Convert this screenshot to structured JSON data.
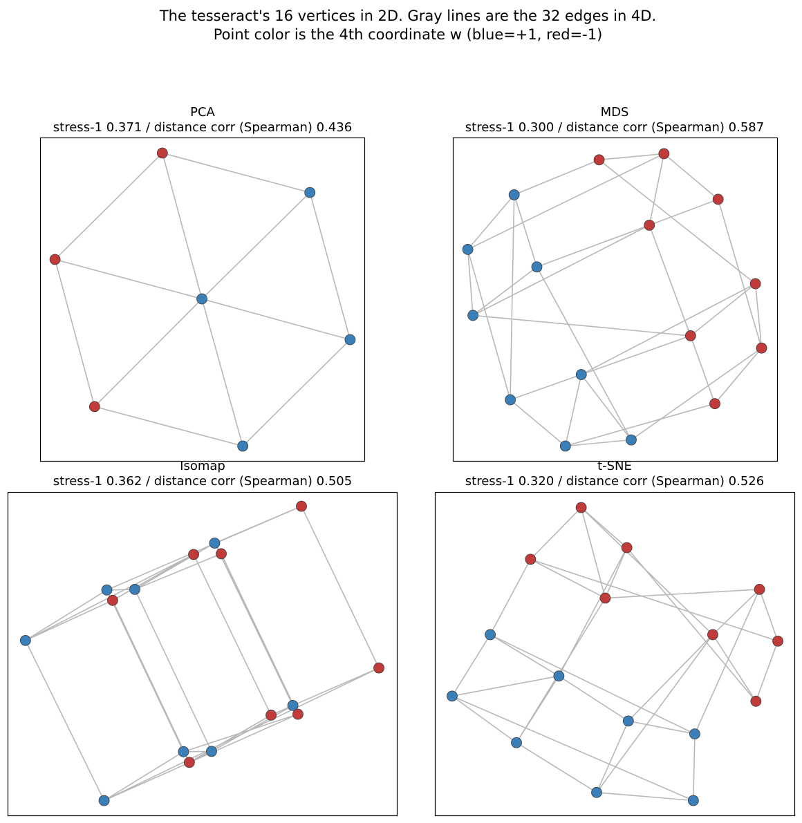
{
  "title_lines": [
    "The tesseract's 16 vertices in 2D. Gray lines are the 32 edges in 4D.",
    "Point color is the 4th coordinate w (blue=+1, red=-1)"
  ],
  "colors": {
    "w_plus": "#3a7fb8",
    "w_minus": "#c23b3b",
    "edge": "#b8b8b8"
  },
  "chart_data": [
    {
      "type": "scatter",
      "title": "PCA",
      "subtitle": "stress-1 0.371 / distance corr (Spearman) 0.436",
      "xlabel": "",
      "ylabel": "",
      "ticks": false,
      "grid": false,
      "xlim": [
        0,
        100
      ],
      "ylim": [
        0,
        100
      ],
      "points": [
        {
          "x": 37.6,
          "y": 95.3,
          "w": -1
        },
        {
          "x": 83.1,
          "y": 83.1,
          "w": 1
        },
        {
          "x": 4.5,
          "y": 62.4,
          "w": -1
        },
        {
          "x": 49.8,
          "y": 50.2,
          "w": 1
        },
        {
          "x": 95.5,
          "y": 37.6,
          "w": 1
        },
        {
          "x": 16.7,
          "y": 16.9,
          "w": -1
        },
        {
          "x": 62.4,
          "y": 4.7,
          "w": 1
        }
      ],
      "edges": [
        [
          0,
          1
        ],
        [
          0,
          2
        ],
        [
          0,
          3
        ],
        [
          1,
          3
        ],
        [
          1,
          4
        ],
        [
          2,
          3
        ],
        [
          2,
          5
        ],
        [
          3,
          4
        ],
        [
          3,
          5
        ],
        [
          3,
          6
        ],
        [
          4,
          6
        ],
        [
          5,
          6
        ]
      ]
    },
    {
      "type": "scatter",
      "title": "MDS",
      "subtitle": "stress-1 0.300 / distance corr (Spearman) 0.587",
      "xlabel": "",
      "ylabel": "",
      "ticks": false,
      "grid": false,
      "xlim": [
        0,
        100
      ],
      "ylim": [
        0,
        100
      ],
      "points": [
        {
          "x": 45.0,
          "y": 93.2,
          "w": -1
        },
        {
          "x": 65.0,
          "y": 95.1,
          "w": -1
        },
        {
          "x": 18.8,
          "y": 82.4,
          "w": 1
        },
        {
          "x": 81.7,
          "y": 81.0,
          "w": -1
        },
        {
          "x": 60.5,
          "y": 73.0,
          "w": -1
        },
        {
          "x": 4.5,
          "y": 65.5,
          "w": 1
        },
        {
          "x": 25.8,
          "y": 60.1,
          "w": 1
        },
        {
          "x": 93.2,
          "y": 54.9,
          "w": -1
        },
        {
          "x": 6.1,
          "y": 45.1,
          "w": 1
        },
        {
          "x": 73.2,
          "y": 38.8,
          "w": -1
        },
        {
          "x": 95.1,
          "y": 35.0,
          "w": -1
        },
        {
          "x": 39.5,
          "y": 26.8,
          "w": 1
        },
        {
          "x": 17.6,
          "y": 19.0,
          "w": 1
        },
        {
          "x": 80.7,
          "y": 17.8,
          "w": -1
        },
        {
          "x": 54.9,
          "y": 6.6,
          "w": 1
        },
        {
          "x": 34.6,
          "y": 4.7,
          "w": 1
        }
      ],
      "edges": [
        [
          0,
          1
        ],
        [
          0,
          2
        ],
        [
          0,
          7
        ],
        [
          1,
          3
        ],
        [
          1,
          5
        ],
        [
          2,
          6
        ],
        [
          2,
          12
        ],
        [
          3,
          4
        ],
        [
          3,
          10
        ],
        [
          4,
          6
        ],
        [
          4,
          9
        ],
        [
          4,
          8
        ],
        [
          5,
          8
        ],
        [
          5,
          12
        ],
        [
          6,
          14
        ],
        [
          7,
          9
        ],
        [
          7,
          10
        ],
        [
          7,
          11
        ],
        [
          8,
          9
        ],
        [
          9,
          13
        ],
        [
          10,
          13
        ],
        [
          10,
          14
        ],
        [
          11,
          12
        ],
        [
          11,
          15
        ],
        [
          12,
          15
        ],
        [
          13,
          15
        ],
        [
          14,
          15
        ],
        [
          5,
          2
        ],
        [
          6,
          8
        ],
        [
          11,
          14
        ],
        [
          1,
          4
        ],
        [
          9,
          11
        ]
      ]
    },
    {
      "type": "scatter",
      "title": "Isomap",
      "subtitle": "stress-1 0.362 / distance corr (Spearman) 0.505",
      "xlabel": "",
      "ylabel": "",
      "ticks": false,
      "grid": false,
      "xlim": [
        0,
        100
      ],
      "ylim": [
        0,
        100
      ],
      "points": [
        {
          "x": 75.4,
          "y": 95.7,
          "w": -1
        },
        {
          "x": 53.1,
          "y": 84.3,
          "w": 1
        },
        {
          "x": 47.7,
          "y": 80.8,
          "w": -1
        },
        {
          "x": 54.8,
          "y": 81.0,
          "w": -1
        },
        {
          "x": 25.4,
          "y": 69.8,
          "w": 1
        },
        {
          "x": 32.6,
          "y": 70.0,
          "w": 1
        },
        {
          "x": 26.9,
          "y": 66.6,
          "w": -1
        },
        {
          "x": 4.5,
          "y": 54.2,
          "w": 1
        },
        {
          "x": 95.3,
          "y": 45.7,
          "w": -1
        },
        {
          "x": 73.2,
          "y": 34.1,
          "w": 1
        },
        {
          "x": 67.6,
          "y": 31.1,
          "w": -1
        },
        {
          "x": 74.5,
          "y": 31.4,
          "w": -1
        },
        {
          "x": 45.1,
          "y": 19.8,
          "w": 1
        },
        {
          "x": 52.3,
          "y": 19.9,
          "w": 1
        },
        {
          "x": 46.6,
          "y": 16.5,
          "w": -1
        },
        {
          "x": 24.7,
          "y": 4.7,
          "w": 1
        }
      ],
      "edges": [
        [
          0,
          1
        ],
        [
          0,
          4
        ],
        [
          0,
          8
        ],
        [
          1,
          5
        ],
        [
          1,
          9
        ],
        [
          2,
          6
        ],
        [
          2,
          7
        ],
        [
          2,
          10
        ],
        [
          3,
          5
        ],
        [
          3,
          11
        ],
        [
          3,
          1
        ],
        [
          4,
          7
        ],
        [
          4,
          12
        ],
        [
          5,
          13
        ],
        [
          6,
          7
        ],
        [
          6,
          14
        ],
        [
          7,
          15
        ],
        [
          8,
          9
        ],
        [
          8,
          15
        ],
        [
          9,
          10
        ],
        [
          9,
          13
        ],
        [
          10,
          14
        ],
        [
          11,
          15
        ],
        [
          11,
          12
        ],
        [
          12,
          15
        ],
        [
          13,
          14
        ],
        [
          14,
          10
        ],
        [
          6,
          2
        ],
        [
          3,
          9
        ],
        [
          5,
          4
        ],
        [
          12,
          13
        ],
        [
          11,
          9
        ]
      ]
    },
    {
      "type": "scatter",
      "title": "t-SNE",
      "subtitle": "stress-1 0.320 / distance corr (Spearman) 0.526",
      "xlabel": "",
      "ylabel": "",
      "ticks": false,
      "grid": false,
      "xlim": [
        0,
        100
      ],
      "ylim": [
        0,
        100
      ],
      "points": [
        {
          "x": 40.6,
          "y": 95.3,
          "w": -1
        },
        {
          "x": 26.5,
          "y": 79.3,
          "w": -1
        },
        {
          "x": 53.3,
          "y": 82.9,
          "w": -1
        },
        {
          "x": 47.3,
          "y": 67.3,
          "w": -1
        },
        {
          "x": 90.2,
          "y": 70.0,
          "w": -1
        },
        {
          "x": 15.3,
          "y": 56.0,
          "w": 1
        },
        {
          "x": 77.2,
          "y": 56.0,
          "w": -1
        },
        {
          "x": 95.3,
          "y": 54.0,
          "w": -1
        },
        {
          "x": 34.4,
          "y": 43.2,
          "w": 1
        },
        {
          "x": 4.7,
          "y": 37.0,
          "w": 1
        },
        {
          "x": 89.2,
          "y": 35.4,
          "w": -1
        },
        {
          "x": 53.7,
          "y": 29.3,
          "w": 1
        },
        {
          "x": 72.2,
          "y": 25.3,
          "w": 1
        },
        {
          "x": 22.6,
          "y": 22.6,
          "w": 1
        },
        {
          "x": 44.9,
          "y": 7.2,
          "w": 1
        },
        {
          "x": 71.8,
          "y": 4.7,
          "w": 1
        }
      ],
      "edges": [
        [
          0,
          1
        ],
        [
          0,
          2
        ],
        [
          0,
          6
        ],
        [
          1,
          3
        ],
        [
          1,
          7
        ],
        [
          2,
          3
        ],
        [
          2,
          8
        ],
        [
          2,
          10
        ],
        [
          3,
          4
        ],
        [
          3,
          13
        ],
        [
          4,
          6
        ],
        [
          4,
          7
        ],
        [
          5,
          1
        ],
        [
          5,
          9
        ],
        [
          5,
          8
        ],
        [
          5,
          12
        ],
        [
          6,
          10
        ],
        [
          6,
          11
        ],
        [
          6,
          14
        ],
        [
          7,
          10
        ],
        [
          8,
          9
        ],
        [
          8,
          11
        ],
        [
          8,
          13
        ],
        [
          9,
          15
        ],
        [
          9,
          13
        ],
        [
          11,
          12
        ],
        [
          11,
          14
        ],
        [
          12,
          15
        ],
        [
          13,
          14
        ],
        [
          14,
          15
        ],
        [
          4,
          12
        ],
        [
          0,
          3
        ]
      ]
    }
  ]
}
